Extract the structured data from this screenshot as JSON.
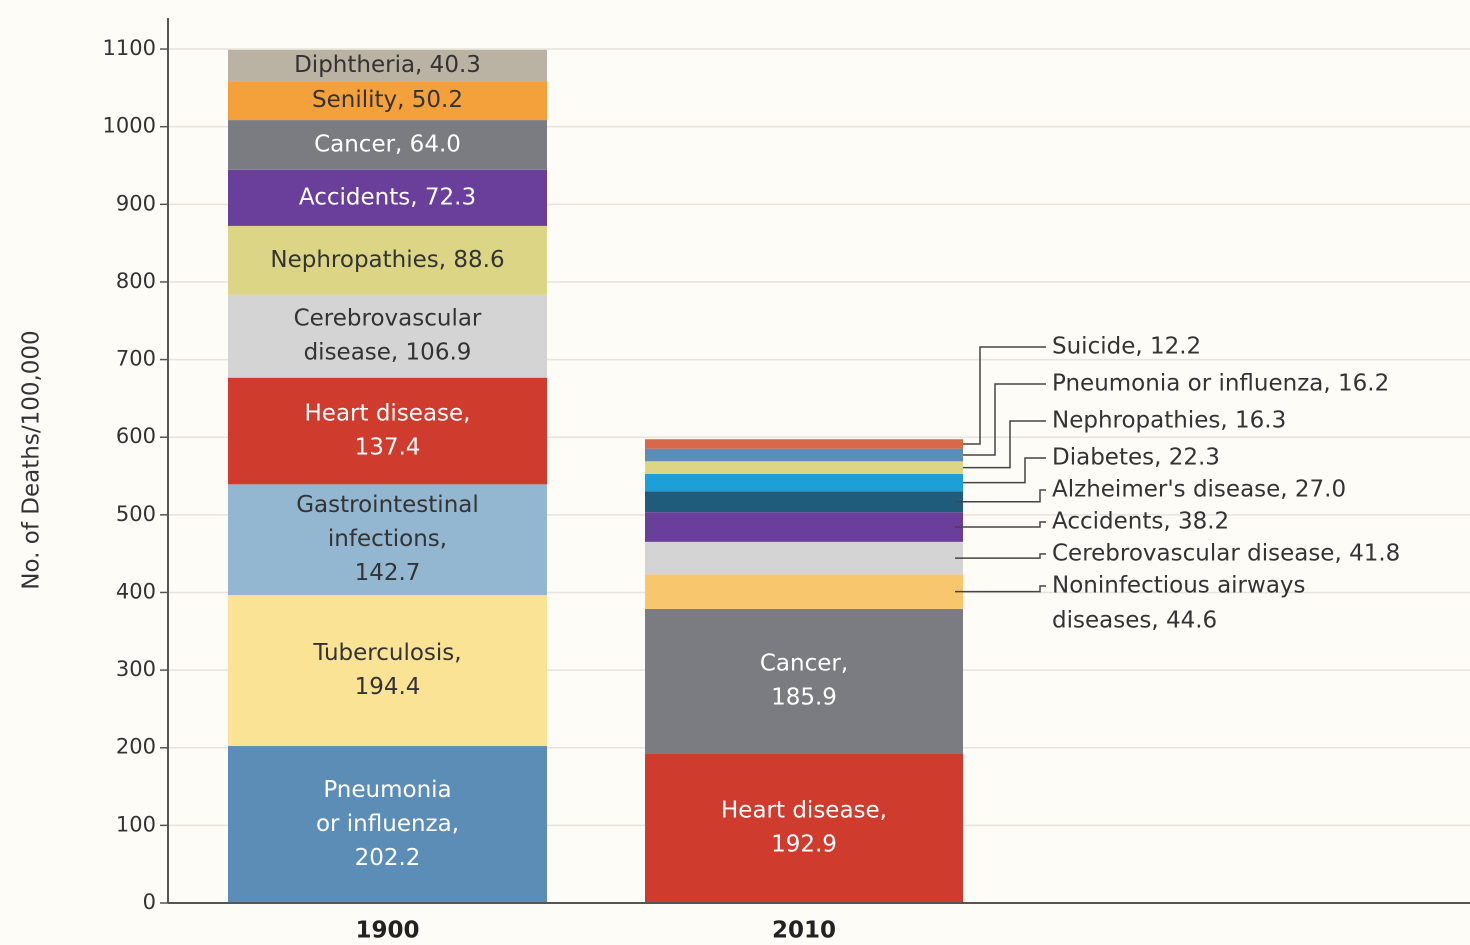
{
  "chart_data": {
    "type": "stacked-bar",
    "y_label": "No. of Deaths/100,000",
    "ylim": [
      0,
      1140
    ],
    "yticks": [
      0,
      100,
      200,
      300,
      400,
      500,
      600,
      700,
      800,
      900,
      1000,
      1100
    ],
    "grid": true,
    "categories": [
      "1900",
      "2010"
    ],
    "stacks": [
      {
        "segments": [
          {
            "label": [
              "Pneumonia",
              "or influenza,",
              "202.2"
            ],
            "value": 202.2,
            "color": "#5b8db6"
          },
          {
            "label": [
              "Tuberculosis,",
              "194.4"
            ],
            "value": 194.4,
            "color": "#fbe396"
          },
          {
            "label": [
              "Gastrointestinal",
              "infections,",
              "142.7"
            ],
            "value": 142.7,
            "color": "#93b7d1"
          },
          {
            "label": [
              "Heart disease,",
              "137.4"
            ],
            "value": 137.4,
            "color": "#cf3b2c"
          },
          {
            "label": [
              "Cerebrovascular",
              "disease, 106.9"
            ],
            "value": 106.9,
            "color": "#d4d4d4"
          },
          {
            "label": [
              "Nephropathies, 88.6"
            ],
            "value": 88.6,
            "color": "#dbd585"
          },
          {
            "label": [
              "Accidents, 72.3"
            ],
            "value": 72.3,
            "color": "#6a3e9b"
          },
          {
            "label": [
              "Cancer, 64.0"
            ],
            "value": 64.0,
            "color": "#7b7c81"
          },
          {
            "label": [
              "Senility, 50.2"
            ],
            "value": 50.2,
            "color": "#f4a13b"
          },
          {
            "label": [
              "Diphtheria, 40.3"
            ],
            "value": 40.3,
            "color": "#bab2a3"
          }
        ]
      },
      {
        "segments": [
          {
            "label": [
              "Heart disease,",
              "192.9"
            ],
            "value": 192.9,
            "color": "#cf3b2c"
          },
          {
            "label": [
              "Cancer,",
              "185.9"
            ],
            "value": 185.9,
            "color": "#7b7c81"
          },
          {
            "label": [
              "Noninfectious airways",
              "diseases, 44.6"
            ],
            "value": 44.6,
            "color": "#f8c66c",
            "callout": true
          },
          {
            "label": [
              "Cerebrovascular disease, 41.8"
            ],
            "value": 41.8,
            "color": "#d4d4d4",
            "callout": true
          },
          {
            "label": [
              "Accidents, 38.2"
            ],
            "value": 38.2,
            "color": "#6a3e9b",
            "callout": true
          },
          {
            "label": [
              "Alzheimer's disease, 27.0"
            ],
            "value": 27.0,
            "color": "#1f5c7c",
            "callout": true
          },
          {
            "label": [
              "Diabetes, 22.3"
            ],
            "value": 22.3,
            "color": "#1d9fd8",
            "callout": true
          },
          {
            "label": [
              "Nephropathies, 16.3"
            ],
            "value": 16.3,
            "color": "#dbd585",
            "callout": true
          },
          {
            "label": [
              "Pneumonia or influenza, 16.2"
            ],
            "value": 16.2,
            "color": "#5b8db6",
            "callout": true
          },
          {
            "label": [
              "Suicide, 12.2"
            ],
            "value": 12.2,
            "color": "#d8684a",
            "callout": true
          }
        ]
      }
    ]
  }
}
